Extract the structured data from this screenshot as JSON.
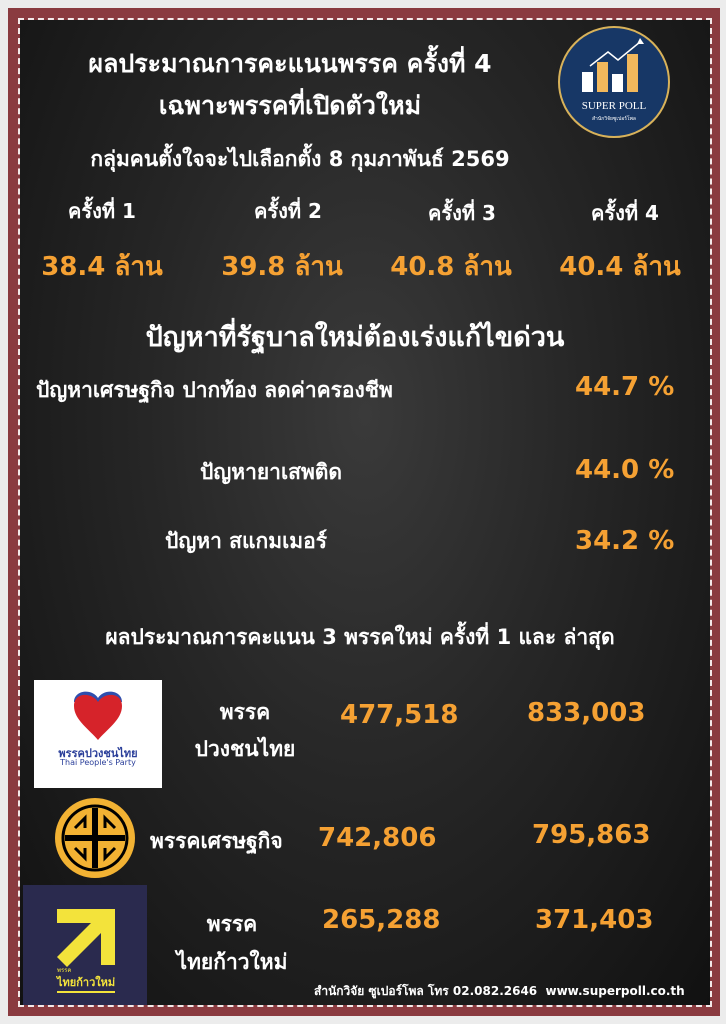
{
  "title": {
    "line1": "ผลประมาณการคะแนนพรรค ครั้งที่ 4",
    "line2": "เฉพาะพรรคที่เปิดตัวใหม่",
    "line3": "กลุ่มคนตั้งใจจะไปเลือกตั้ง 8 กุมภาพันธ์ 2569"
  },
  "logo": {
    "name": "SUPER POLL",
    "subtitle": "สำนักวิจัยซูเปอร์โพล"
  },
  "rounds": [
    {
      "label": "ครั้งที่ 1",
      "value": "38.4 ล้าน"
    },
    {
      "label": "ครั้งที่ 2",
      "value": "39.8 ล้าน"
    },
    {
      "label": "ครั้งที่ 3",
      "value": "40.8 ล้าน"
    },
    {
      "label": "ครั้งที่ 4",
      "value": "40.4 ล้าน"
    }
  ],
  "issues": {
    "heading": "ปัญหาที่รัฐบาลใหม่ต้องเร่งแก้ไขด่วน",
    "items": [
      {
        "label": "ปัญหาเศรษฐกิจ ปากท้อง ลดค่าครองชีพ",
        "value": "44.7 %"
      },
      {
        "label": "ปัญหายาเสพติด",
        "value": "44.0 %"
      },
      {
        "label": "ปัญหา สแกมเมอร์",
        "value": "34.2 %"
      }
    ]
  },
  "parties": {
    "heading": "ผลประมาณการคะแนน 3 พรรคใหม่ ครั้งที่ 1 และ ล่าสุด",
    "items": [
      {
        "name1": "พรรค",
        "name2": "ปวงชนไทย",
        "first": "477,518",
        "latest": "833,003",
        "logo_text": "พรรคปวงชนไทย",
        "logo_en": "Thai People's Party"
      },
      {
        "name1": "พรรคเศรษฐกิจ",
        "name2": "",
        "first": "742,806",
        "latest": "795,863"
      },
      {
        "name1": "พรรค",
        "name2": "ไทยก้าวใหม่",
        "first": "265,288",
        "latest": "371,403",
        "logo_small": "พรรค",
        "logo_text": "ไทยก้าวใหม่"
      }
    ]
  },
  "footer": "สำนักวิจัย ซูเปอร์โพล โทร 02.082.2646  www.superpoll.co.th",
  "colors": {
    "accent": "#f5a133",
    "frame": "#8a3b40",
    "background": "#1c1c1c",
    "text": "#ffffff"
  }
}
